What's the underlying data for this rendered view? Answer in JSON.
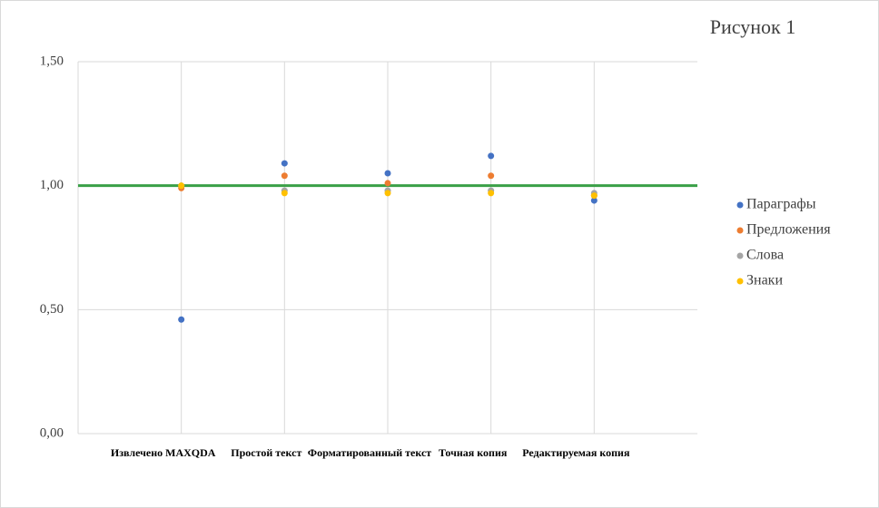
{
  "chart_data": {
    "type": "scatter",
    "title": "Рисунок 1",
    "categories": [
      "Извлечено MAXQDA",
      "Простой текст",
      "Форматированный текст",
      "Точная копия",
      "Редактируемая копия"
    ],
    "series": [
      {
        "name": "Параграфы",
        "color": "#4472c4",
        "values": [
          0.46,
          1.09,
          1.05,
          1.12,
          0.94
        ]
      },
      {
        "name": "Предложения",
        "color": "#ed7d31",
        "values": [
          0.99,
          1.04,
          1.01,
          1.04,
          0.96
        ]
      },
      {
        "name": "Слова",
        "color": "#a5a5a5",
        "values": [
          1.0,
          0.98,
          0.98,
          0.98,
          0.97
        ]
      },
      {
        "name": "Знаки",
        "color": "#ffc000",
        "values": [
          1.0,
          0.97,
          0.97,
          0.97,
          0.96
        ]
      }
    ],
    "reference_line": {
      "value": 1,
      "color": "#3aa047"
    },
    "ylim": [
      0,
      1.5
    ],
    "yticks": [
      {
        "value": 0,
        "label": "0,00"
      },
      {
        "value": 0.5,
        "label": "0,50"
      },
      {
        "value": 1,
        "label": "1,00"
      },
      {
        "value": 1.5,
        "label": "1,50"
      }
    ],
    "grid": true,
    "legend": "right"
  }
}
